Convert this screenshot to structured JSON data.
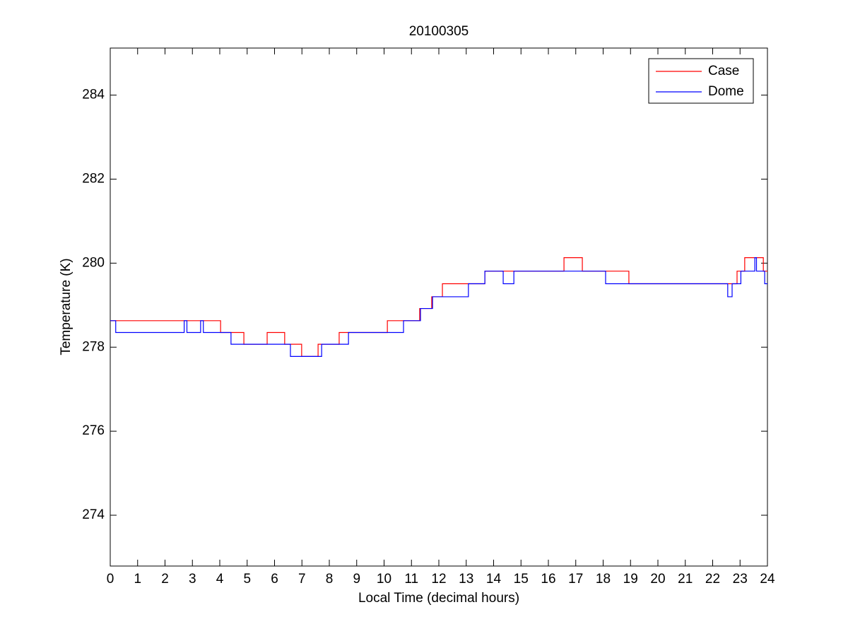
{
  "chart_data": {
    "type": "line",
    "title": "20100305",
    "xlabel": "Local Time (decimal hours)",
    "ylabel": "Temperature (K)",
    "xlim": [
      0,
      24
    ],
    "ylim": [
      272.79,
      285.12
    ],
    "xticks": [
      0,
      1,
      2,
      3,
      4,
      5,
      6,
      7,
      8,
      9,
      10,
      11,
      12,
      13,
      14,
      15,
      16,
      17,
      18,
      19,
      20,
      21,
      22,
      23,
      24
    ],
    "yticks": [
      274,
      276,
      278,
      280,
      282,
      284
    ],
    "grid": false,
    "legend": "northeast",
    "series": [
      {
        "name": "Case",
        "color": "#ff0000",
        "x": [
          0,
          4.03,
          4.03,
          4.88,
          4.88,
          5.73,
          5.73,
          6.37,
          6.37,
          6.99,
          6.99,
          7.59,
          7.59,
          8.36,
          8.36,
          10.12,
          10.12,
          11.3,
          11.3,
          11.74,
          11.74,
          12.13,
          12.13,
          13.68,
          13.68,
          16.57,
          16.57,
          17.24,
          17.24,
          18.94,
          18.94,
          22.89,
          22.89,
          23.17,
          23.17,
          23.85,
          23.85,
          24
        ],
        "values": [
          278.63,
          278.63,
          278.35,
          278.35,
          278.07,
          278.07,
          278.35,
          278.35,
          278.07,
          278.07,
          277.78,
          277.78,
          278.07,
          278.07,
          278.35,
          278.35,
          278.63,
          278.63,
          278.92,
          278.92,
          279.2,
          279.2,
          279.51,
          279.51,
          279.81,
          279.81,
          280.13,
          280.13,
          279.81,
          279.81,
          279.51,
          279.51,
          279.81,
          279.81,
          280.13,
          280.13,
          279.81,
          279.81
        ]
      },
      {
        "name": "Dome",
        "color": "#0000ff",
        "x": [
          0,
          0.2,
          0.2,
          2.7,
          2.7,
          2.8,
          2.8,
          3.3,
          3.3,
          3.4,
          3.4,
          4.41,
          4.41,
          6.58,
          6.58,
          7.72,
          7.72,
          8.7,
          8.7,
          10.71,
          10.71,
          11.33,
          11.33,
          11.77,
          11.77,
          13.08,
          13.08,
          13.68,
          13.68,
          14.35,
          14.35,
          14.74,
          14.74,
          18.09,
          18.09,
          22.55,
          22.55,
          22.71,
          22.71,
          23.03,
          23.03,
          23.54,
          23.54,
          23.6,
          23.6,
          23.9,
          23.9,
          24
        ],
        "values": [
          278.63,
          278.63,
          278.35,
          278.35,
          278.63,
          278.63,
          278.35,
          278.35,
          278.63,
          278.63,
          278.35,
          278.35,
          278.07,
          278.07,
          277.78,
          277.78,
          278.07,
          278.07,
          278.35,
          278.35,
          278.63,
          278.63,
          278.92,
          278.92,
          279.2,
          279.2,
          279.51,
          279.51,
          279.81,
          279.81,
          279.51,
          279.51,
          279.81,
          279.81,
          279.51,
          279.51,
          279.2,
          279.2,
          279.51,
          279.51,
          279.81,
          279.81,
          280.13,
          280.13,
          279.81,
          279.81,
          279.51,
          279.51
        ]
      }
    ]
  }
}
